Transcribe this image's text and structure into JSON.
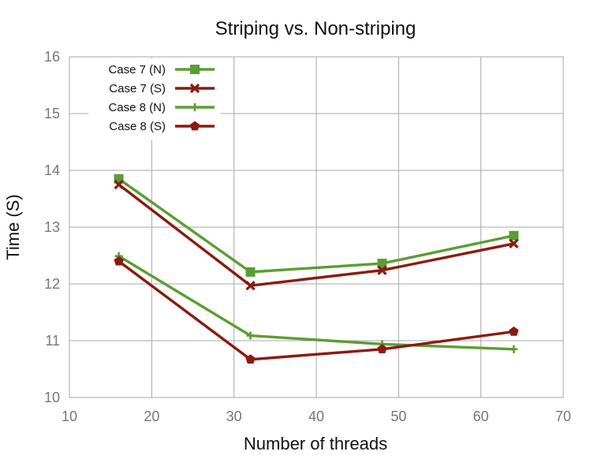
{
  "chart_data": {
    "type": "line",
    "title": "Striping vs. Non-striping",
    "xlabel": "Number of threads",
    "ylabel": "Time (S)",
    "xlim": [
      10,
      70
    ],
    "ylim": [
      10,
      16
    ],
    "xticks": [
      10,
      20,
      30,
      40,
      50,
      60,
      70
    ],
    "yticks": [
      10,
      11,
      12,
      13,
      14,
      15,
      16
    ],
    "grid": true,
    "legend_position": "top-left",
    "x": [
      16,
      32,
      48,
      64
    ],
    "series": [
      {
        "name": "Case 7 (N)",
        "values": [
          13.85,
          12.21,
          12.36,
          12.85
        ],
        "color": "#5a9e32",
        "marker": "square"
      },
      {
        "name": "Case 7 (S)",
        "values": [
          13.75,
          11.97,
          12.24,
          12.71
        ],
        "color": "#8b1a0e",
        "marker": "x"
      },
      {
        "name": "Case 8 (N)",
        "values": [
          12.49,
          11.09,
          10.94,
          10.85
        ],
        "color": "#5a9e32",
        "marker": "plus"
      },
      {
        "name": "Case 8 (S)",
        "values": [
          12.4,
          10.67,
          10.85,
          11.16
        ],
        "color": "#8b1a0e",
        "marker": "pentagon"
      }
    ]
  }
}
